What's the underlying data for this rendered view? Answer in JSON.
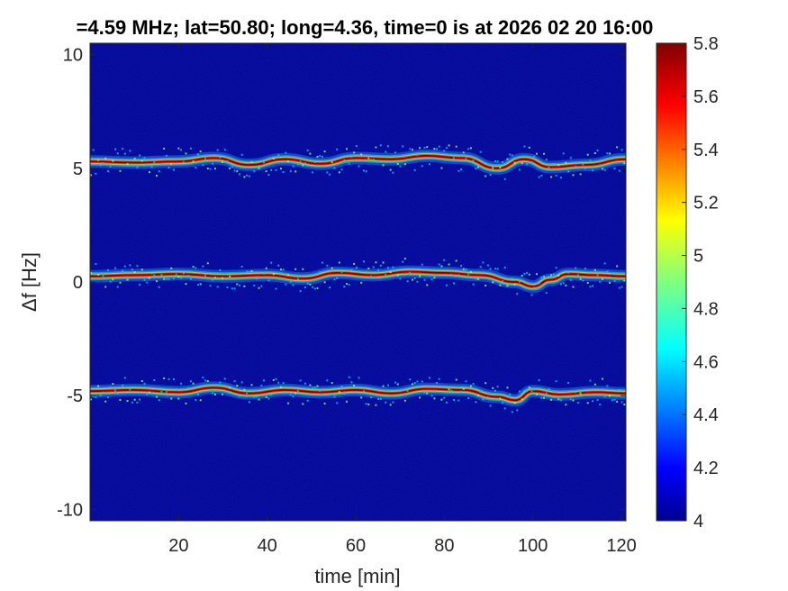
{
  "chart_data": {
    "type": "heatmap",
    "title": "=4.59 MHz;  lat=50.80; long=4.36, time=0 is at 2026 02 20 16:00",
    "xlabel": "time [min]",
    "ylabel": "Δf [Hz]",
    "xlim": [
      0,
      121
    ],
    "ylim": [
      -10.5,
      10.5
    ],
    "x_ticks": [
      20,
      40,
      60,
      80,
      100,
      120
    ],
    "y_ticks": [
      -10,
      -5,
      0,
      5,
      10
    ],
    "colorbar": {
      "range": [
        4,
        5.8
      ],
      "ticks": [
        4,
        4.2,
        4.4,
        4.6,
        4.8,
        5,
        5.2,
        5.4,
        5.6,
        5.8
      ],
      "colormap": "jet"
    },
    "background_value": 4.0,
    "colors": {
      "background": "#00008f",
      "peak": "#800000"
    },
    "traces": [
      {
        "center_hz": 5.3,
        "t": [
          0,
          10,
          20,
          28,
          36,
          44,
          52,
          60,
          68,
          76,
          84,
          92,
          98,
          104,
          112,
          121
        ],
        "df": [
          5.3,
          5.25,
          5.3,
          5.45,
          5.15,
          5.4,
          5.2,
          5.45,
          5.4,
          5.55,
          5.45,
          5.0,
          5.4,
          5.05,
          5.15,
          5.4
        ]
      },
      {
        "center_hz": 0.3,
        "t": [
          0,
          10,
          20,
          30,
          40,
          48,
          56,
          64,
          72,
          80,
          88,
          96,
          100,
          104,
          108,
          114,
          121
        ],
        "df": [
          0.25,
          0.3,
          0.35,
          0.25,
          0.3,
          0.15,
          0.4,
          0.3,
          0.45,
          0.4,
          0.3,
          0.0,
          -0.2,
          0.1,
          0.35,
          0.3,
          0.25
        ]
      },
      {
        "center_hz": -4.9,
        "t": [
          0,
          10,
          20,
          28,
          36,
          44,
          52,
          60,
          68,
          76,
          84,
          92,
          96,
          100,
          106,
          114,
          121
        ],
        "df": [
          -4.8,
          -4.75,
          -4.85,
          -4.65,
          -4.9,
          -4.75,
          -4.85,
          -4.75,
          -4.9,
          -4.7,
          -4.75,
          -5.05,
          -5.2,
          -4.8,
          -4.95,
          -4.85,
          -4.9
        ]
      }
    ]
  }
}
